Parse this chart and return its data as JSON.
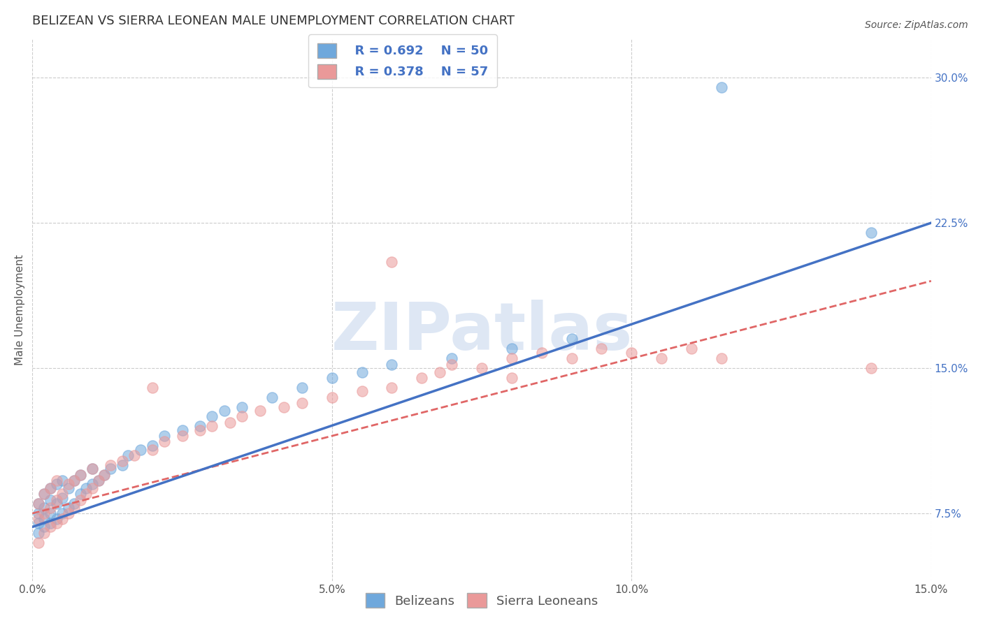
{
  "title": "BELIZEAN VS SIERRA LEONEAN MALE UNEMPLOYMENT CORRELATION CHART",
  "source": "Source: ZipAtlas.com",
  "ylabel": "Male Unemployment",
  "watermark": "ZIPatlas",
  "xlim": [
    0.0,
    0.15
  ],
  "ylim": [
    0.04,
    0.32
  ],
  "xticks": [
    0.0,
    0.05,
    0.1,
    0.15
  ],
  "xticklabels": [
    "0.0%",
    "5.0%",
    "10.0%",
    "15.0%"
  ],
  "right_ytick_values": [
    0.075,
    0.15,
    0.225,
    0.3
  ],
  "right_yticklabels": [
    "7.5%",
    "15.0%",
    "22.5%",
    "30.0%"
  ],
  "belizean_color": "#6fa8dc",
  "sierraleone_color": "#ea9999",
  "legend_R_belizean": "R = 0.692",
  "legend_N_belizean": "N = 50",
  "legend_R_sierraleone": "R = 0.378",
  "legend_N_sierraleone": "N = 57",
  "blue_line_color": "#4472c4",
  "pink_line_color": "#e06666",
  "grid_color": "#cccccc",
  "background_color": "#ffffff",
  "title_fontsize": 13,
  "label_fontsize": 11,
  "tick_fontsize": 11,
  "watermark_color": "#c8d8ee",
  "watermark_fontsize": 68,
  "legend_fontsize": 13,
  "legend_color": "#4472c4",
  "blue_trend_x0": 0.0,
  "blue_trend_y0": 0.068,
  "blue_trend_x1": 0.15,
  "blue_trend_y1": 0.225,
  "pink_trend_x0": 0.0,
  "pink_trend_y0": 0.075,
  "pink_trend_x1": 0.15,
  "pink_trend_y1": 0.195,
  "belizean_x": [
    0.001,
    0.001,
    0.001,
    0.001,
    0.002,
    0.002,
    0.002,
    0.002,
    0.003,
    0.003,
    0.003,
    0.003,
    0.004,
    0.004,
    0.004,
    0.005,
    0.005,
    0.005,
    0.006,
    0.006,
    0.007,
    0.007,
    0.008,
    0.008,
    0.009,
    0.01,
    0.01,
    0.011,
    0.012,
    0.013,
    0.015,
    0.016,
    0.018,
    0.02,
    0.022,
    0.025,
    0.028,
    0.03,
    0.032,
    0.035,
    0.04,
    0.045,
    0.05,
    0.055,
    0.06,
    0.07,
    0.08,
    0.09,
    0.115,
    0.14
  ],
  "belizean_y": [
    0.065,
    0.07,
    0.075,
    0.08,
    0.068,
    0.072,
    0.078,
    0.085,
    0.07,
    0.075,
    0.082,
    0.088,
    0.072,
    0.08,
    0.09,
    0.075,
    0.083,
    0.092,
    0.078,
    0.088,
    0.08,
    0.092,
    0.085,
    0.095,
    0.088,
    0.09,
    0.098,
    0.092,
    0.095,
    0.098,
    0.1,
    0.105,
    0.108,
    0.11,
    0.115,
    0.118,
    0.12,
    0.125,
    0.128,
    0.13,
    0.135,
    0.14,
    0.145,
    0.148,
    0.152,
    0.155,
    0.16,
    0.165,
    0.295,
    0.22
  ],
  "sierraleone_x": [
    0.001,
    0.001,
    0.001,
    0.002,
    0.002,
    0.002,
    0.003,
    0.003,
    0.003,
    0.004,
    0.004,
    0.004,
    0.005,
    0.005,
    0.006,
    0.006,
    0.007,
    0.007,
    0.008,
    0.008,
    0.009,
    0.01,
    0.01,
    0.011,
    0.012,
    0.013,
    0.015,
    0.017,
    0.02,
    0.022,
    0.025,
    0.028,
    0.03,
    0.033,
    0.035,
    0.038,
    0.042,
    0.045,
    0.05,
    0.055,
    0.06,
    0.065,
    0.068,
    0.07,
    0.075,
    0.08,
    0.085,
    0.09,
    0.095,
    0.1,
    0.105,
    0.11,
    0.115,
    0.06,
    0.02,
    0.08,
    0.14
  ],
  "sierraleone_y": [
    0.06,
    0.072,
    0.08,
    0.065,
    0.075,
    0.085,
    0.068,
    0.078,
    0.088,
    0.07,
    0.082,
    0.092,
    0.072,
    0.085,
    0.075,
    0.09,
    0.078,
    0.092,
    0.082,
    0.095,
    0.085,
    0.088,
    0.098,
    0.092,
    0.095,
    0.1,
    0.102,
    0.105,
    0.108,
    0.112,
    0.115,
    0.118,
    0.12,
    0.122,
    0.125,
    0.128,
    0.13,
    0.132,
    0.135,
    0.138,
    0.14,
    0.145,
    0.148,
    0.152,
    0.15,
    0.155,
    0.158,
    0.155,
    0.16,
    0.158,
    0.155,
    0.16,
    0.155,
    0.205,
    0.14,
    0.145,
    0.15
  ]
}
